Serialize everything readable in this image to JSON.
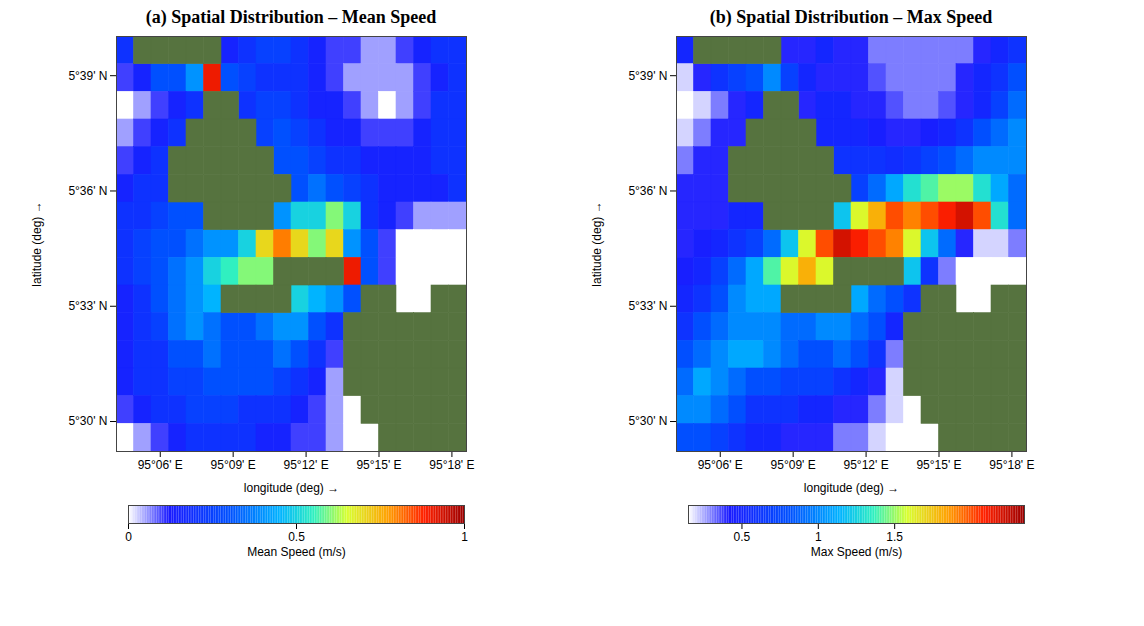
{
  "chart_data": [
    {
      "type": "heatmap",
      "title": "(a) Spatial Distribution – Mean Speed",
      "x_label": "longitude (deg) →",
      "y_label": "latitude (deg) →",
      "x": [
        95.076,
        95.088,
        95.1,
        95.112,
        95.124,
        95.136,
        95.148,
        95.16,
        95.172,
        95.184,
        95.196,
        95.208,
        95.22,
        95.232,
        95.244,
        95.256,
        95.268,
        95.28,
        95.292,
        95.304
      ],
      "y": [
        5.661,
        5.649,
        5.637,
        5.625,
        5.613,
        5.601,
        5.589,
        5.577,
        5.565,
        5.553,
        5.541,
        5.529,
        5.517,
        5.505,
        5.493
      ],
      "values": [
        [
          0.2,
          null,
          null,
          null,
          null,
          null,
          0.15,
          0.2,
          0.25,
          0.25,
          0.2,
          0.15,
          0.1,
          0.1,
          0.05,
          0.05,
          0.1,
          0.15,
          0.2,
          0.2
        ],
        [
          0.1,
          0.15,
          0.3,
          0.3,
          0.4,
          0.9,
          0.3,
          0.25,
          0.2,
          0.2,
          0.2,
          0.15,
          0.1,
          0.05,
          0.05,
          0.05,
          0.05,
          0.1,
          0.15,
          0.2
        ],
        [
          0,
          0.05,
          0.1,
          0.15,
          0.2,
          null,
          null,
          0.2,
          0.25,
          0.25,
          0.2,
          0.15,
          0.15,
          0.1,
          0.05,
          0,
          0.05,
          0.1,
          0.2,
          0.2
        ],
        [
          0.05,
          0.1,
          0.15,
          0.2,
          null,
          null,
          null,
          null,
          0.25,
          0.3,
          0.25,
          0.2,
          0.15,
          0.15,
          0.1,
          0.1,
          0.1,
          0.15,
          0.2,
          0.2
        ],
        [
          0.1,
          0.15,
          0.2,
          null,
          null,
          null,
          null,
          null,
          null,
          0.3,
          0.3,
          0.25,
          0.2,
          0.2,
          0.15,
          0.15,
          0.15,
          0.15,
          0.2,
          0.2
        ],
        [
          0.15,
          0.2,
          0.2,
          null,
          null,
          null,
          null,
          null,
          null,
          null,
          0.3,
          0.35,
          0.3,
          0.25,
          0.2,
          0.15,
          0.15,
          0.15,
          0.15,
          0.2
        ],
        [
          0.2,
          0.2,
          0.25,
          0.3,
          0.3,
          null,
          null,
          null,
          null,
          0.4,
          0.5,
          0.5,
          0.6,
          0.5,
          0.2,
          0.15,
          0.1,
          0.05,
          0.05,
          0.05
        ],
        [
          0.2,
          0.25,
          0.3,
          0.3,
          0.35,
          0.4,
          0.4,
          0.5,
          0.7,
          0.8,
          0.7,
          0.6,
          0.7,
          0.4,
          0.3,
          0.1,
          0,
          0,
          0,
          0
        ],
        [
          0.2,
          0.25,
          0.3,
          0.35,
          0.4,
          0.5,
          0.55,
          0.6,
          0.6,
          null,
          null,
          null,
          null,
          0.9,
          0.3,
          0.1,
          0,
          0,
          0,
          0
        ],
        [
          0.15,
          0.2,
          0.3,
          0.35,
          0.4,
          0.45,
          null,
          null,
          null,
          null,
          0.5,
          0.45,
          0.4,
          0.3,
          null,
          null,
          0,
          0,
          null,
          null
        ],
        [
          0.15,
          0.2,
          0.25,
          0.35,
          0.4,
          0.35,
          0.3,
          0.3,
          0.35,
          0.4,
          0.4,
          0.3,
          0.2,
          null,
          null,
          null,
          null,
          null,
          null,
          null
        ],
        [
          0.15,
          0.2,
          0.2,
          0.3,
          0.3,
          0.35,
          0.3,
          0.3,
          0.3,
          0.35,
          0.3,
          0.2,
          0.1,
          null,
          null,
          null,
          null,
          null,
          null,
          null
        ],
        [
          0.15,
          0.2,
          0.2,
          0.25,
          0.25,
          0.3,
          0.3,
          0.3,
          0.3,
          0.25,
          0.2,
          0.15,
          0.05,
          null,
          null,
          null,
          null,
          null,
          null,
          null
        ],
        [
          0.1,
          0.15,
          0.2,
          0.2,
          0.25,
          0.25,
          0.25,
          0.2,
          0.2,
          0.2,
          0.15,
          0.1,
          0.05,
          0,
          null,
          null,
          null,
          null,
          null,
          null
        ],
        [
          0,
          0.05,
          0.1,
          0.15,
          0.2,
          0.2,
          0.2,
          0.2,
          0.15,
          0.15,
          0.1,
          0.1,
          0.05,
          0,
          0,
          null,
          null,
          null,
          null,
          null
        ]
      ],
      "xlim": [
        95.07,
        95.31
      ],
      "ylim": [
        5.487,
        5.667
      ],
      "xticks": [
        {
          "value": 95.1,
          "label": "95°06' E"
        },
        {
          "value": 95.15,
          "label": "95°09' E"
        },
        {
          "value": 95.2,
          "label": "95°12' E"
        },
        {
          "value": 95.25,
          "label": "95°15' E"
        },
        {
          "value": 95.3,
          "label": "95°18' E"
        }
      ],
      "yticks": [
        {
          "value": 5.5,
          "label": "5°30' N"
        },
        {
          "value": 5.55,
          "label": "5°33' N"
        },
        {
          "value": 5.6,
          "label": "5°36' N"
        },
        {
          "value": 5.65,
          "label": "5°39' N"
        }
      ],
      "colorbar": {
        "label": "Mean Speed (m/s)",
        "range": [
          0,
          1
        ],
        "ticks": [
          0,
          0.5,
          1
        ]
      }
    },
    {
      "type": "heatmap",
      "title": "(b) Spatial Distribution – Max Speed",
      "x_label": "longitude (deg) →",
      "y_label": "latitude (deg) →",
      "x": [
        95.076,
        95.088,
        95.1,
        95.112,
        95.124,
        95.136,
        95.148,
        95.16,
        95.172,
        95.184,
        95.196,
        95.208,
        95.22,
        95.232,
        95.244,
        95.256,
        95.268,
        95.28,
        95.292,
        95.304
      ],
      "y": [
        5.661,
        5.649,
        5.637,
        5.625,
        5.613,
        5.601,
        5.589,
        5.577,
        5.565,
        5.553,
        5.541,
        5.529,
        5.517,
        5.505,
        5.493
      ],
      "values": [
        [
          0.5,
          null,
          null,
          null,
          null,
          null,
          0.4,
          0.4,
          0.5,
          0.4,
          0.4,
          0.3,
          0.3,
          0.3,
          0.3,
          0.3,
          0.3,
          0.4,
          0.5,
          0.6
        ],
        [
          0.2,
          0.4,
          0.6,
          0.7,
          0.8,
          1,
          0.7,
          0.5,
          0.4,
          0.4,
          0.4,
          0.35,
          0.3,
          0.3,
          0.3,
          0.3,
          0.4,
          0.5,
          0.6,
          0.8
        ],
        [
          0.1,
          0.2,
          0.3,
          0.4,
          0.5,
          null,
          null,
          0.4,
          0.5,
          0.5,
          0.4,
          0.4,
          0.35,
          0.3,
          0.3,
          0.35,
          0.4,
          0.5,
          0.7,
          0.9
        ],
        [
          0.2,
          0.3,
          0.4,
          0.4,
          null,
          null,
          null,
          null,
          0.5,
          0.5,
          0.5,
          0.45,
          0.4,
          0.4,
          0.45,
          0.5,
          0.6,
          0.8,
          0.9,
          1
        ],
        [
          0.3,
          0.4,
          0.4,
          null,
          null,
          null,
          null,
          null,
          null,
          0.6,
          0.6,
          0.6,
          0.55,
          0.6,
          0.7,
          0.8,
          0.9,
          1,
          1,
          1
        ],
        [
          0.4,
          0.4,
          0.4,
          null,
          null,
          null,
          null,
          null,
          null,
          null,
          0.7,
          0.9,
          1.1,
          1.3,
          1.4,
          1.5,
          1.5,
          1.3,
          1.1,
          0.9
        ],
        [
          0.4,
          0.4,
          0.4,
          0.5,
          0.5,
          null,
          null,
          null,
          null,
          1.2,
          1.6,
          1.8,
          2,
          1.9,
          2,
          2.1,
          2.2,
          2,
          1.3,
          0.9
        ],
        [
          0.4,
          0.45,
          0.5,
          0.6,
          0.7,
          0.9,
          1.2,
          1.6,
          2,
          2.2,
          2.1,
          2,
          1.9,
          1.6,
          1.2,
          0.9,
          0.4,
          0.2,
          0.2,
          0.3
        ],
        [
          0.45,
          0.5,
          0.7,
          0.9,
          1.1,
          1.4,
          1.6,
          1.8,
          1.6,
          null,
          null,
          null,
          null,
          1.2,
          0.6,
          0.3,
          0.15,
          0.15,
          0.15,
          0.15
        ],
        [
          0.5,
          0.6,
          0.8,
          1,
          1.1,
          1.1,
          null,
          null,
          null,
          null,
          1.1,
          0.9,
          0.8,
          0.6,
          null,
          null,
          0.15,
          0.15,
          null,
          null
        ],
        [
          0.6,
          0.8,
          0.9,
          1,
          1,
          1,
          0.9,
          0.9,
          1,
          1,
          0.9,
          0.8,
          0.5,
          null,
          null,
          null,
          null,
          null,
          null,
          null
        ],
        [
          0.8,
          0.9,
          1,
          1.1,
          1.1,
          1,
          0.9,
          0.8,
          0.8,
          0.9,
          0.8,
          0.6,
          0.3,
          null,
          null,
          null,
          null,
          null,
          null,
          null
        ],
        [
          0.9,
          1.1,
          1,
          0.9,
          0.8,
          0.8,
          0.7,
          0.7,
          0.7,
          0.6,
          0.5,
          0.4,
          0.2,
          null,
          null,
          null,
          null,
          null,
          null,
          null
        ],
        [
          1,
          1,
          0.9,
          0.8,
          0.6,
          0.6,
          0.6,
          0.5,
          0.5,
          0.4,
          0.4,
          0.3,
          0.2,
          0.1,
          null,
          null,
          null,
          null,
          null,
          null
        ],
        [
          0.8,
          0.8,
          0.7,
          0.6,
          0.5,
          0.5,
          0.4,
          0.4,
          0.4,
          0.3,
          0.3,
          0.2,
          0.15,
          0.1,
          0.1,
          null,
          null,
          null,
          null,
          null
        ]
      ],
      "xlim": [
        95.07,
        95.31
      ],
      "ylim": [
        5.487,
        5.667
      ],
      "xticks": [
        {
          "value": 95.1,
          "label": "95°06' E"
        },
        {
          "value": 95.15,
          "label": "95°09' E"
        },
        {
          "value": 95.2,
          "label": "95°12' E"
        },
        {
          "value": 95.25,
          "label": "95°15' E"
        },
        {
          "value": 95.3,
          "label": "95°18' E"
        }
      ],
      "yticks": [
        {
          "value": 5.5,
          "label": "5°30' N"
        },
        {
          "value": 5.55,
          "label": "5°33' N"
        },
        {
          "value": 5.6,
          "label": "5°36' N"
        },
        {
          "value": 5.65,
          "label": "5°39' N"
        }
      ],
      "colorbar": {
        "label": "Max Speed (m/s)",
        "range": [
          0.15,
          2.35
        ],
        "ticks": [
          0.5,
          1,
          1.5
        ]
      }
    }
  ]
}
